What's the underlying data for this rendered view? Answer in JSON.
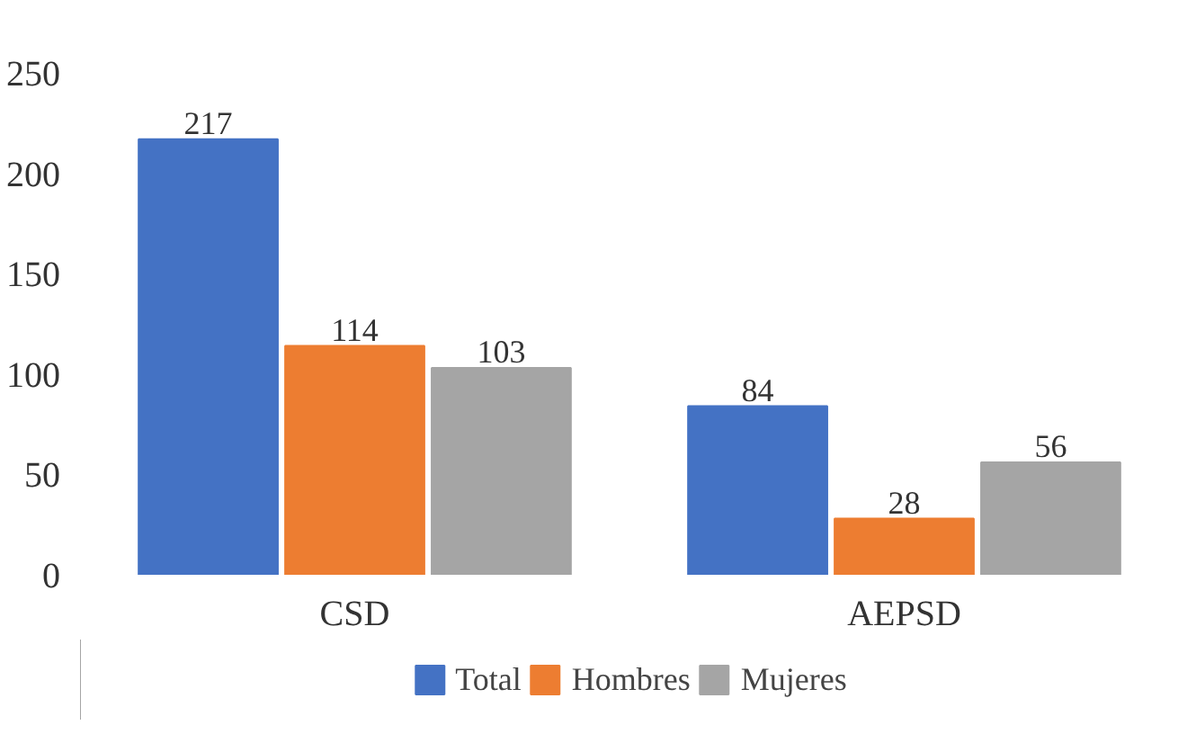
{
  "chart_data": {
    "type": "bar",
    "categories": [
      "CSD",
      "AEPSD"
    ],
    "series": [
      {
        "name": "Total",
        "color": "#4472c4",
        "values": [
          217,
          84
        ]
      },
      {
        "name": "Hombres",
        "color": "#ed7d31",
        "values": [
          114,
          28
        ]
      },
      {
        "name": "Mujeres",
        "color": "#a5a5a5",
        "values": [
          103,
          56
        ]
      }
    ],
    "ylim": [
      0,
      250
    ],
    "yticks": [
      0,
      50,
      100,
      150,
      200,
      250
    ],
    "data_labels": true,
    "grid": false,
    "legend": "bottom"
  }
}
